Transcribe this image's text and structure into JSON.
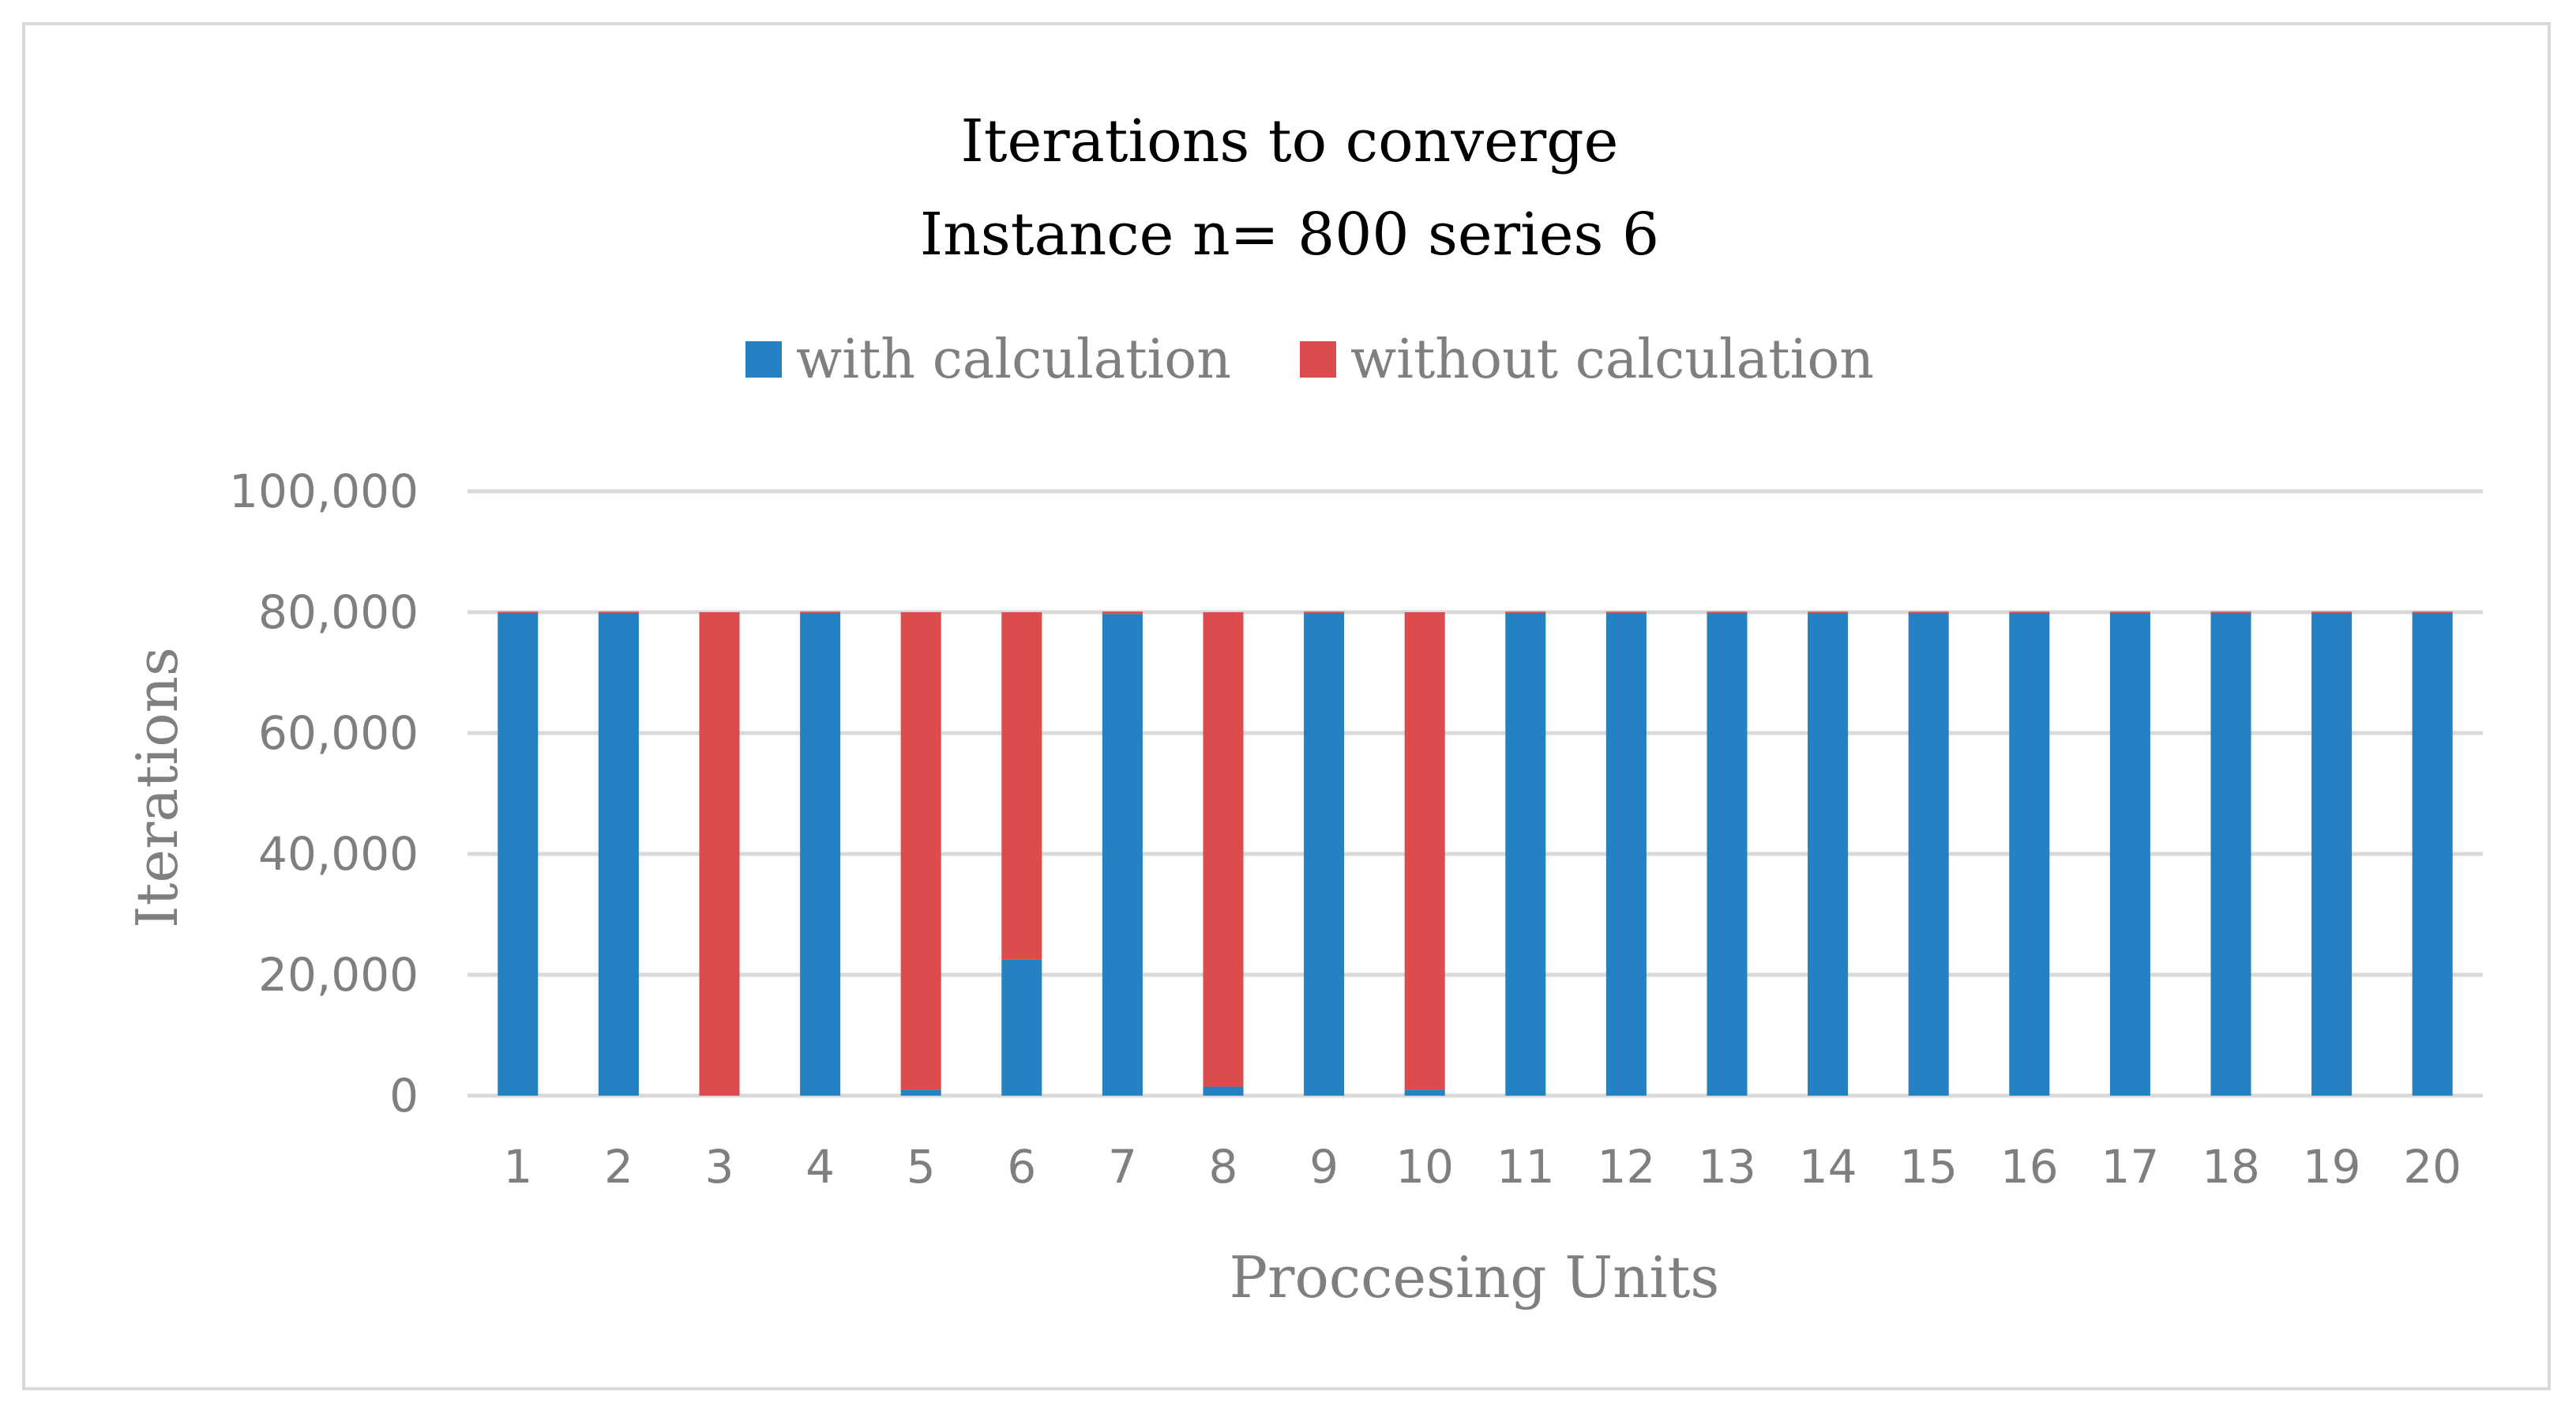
{
  "chart_data": {
    "type": "bar",
    "stacked": true,
    "title": "Iterations to converge",
    "subtitle": "Instance n= 800 series 6",
    "xlabel": "Proccesing Units",
    "ylabel": "Iterations",
    "ylim": [
      0,
      100000
    ],
    "yticks": [
      0,
      20000,
      40000,
      60000,
      80000,
      100000
    ],
    "ytick_labels": [
      "0",
      "20,000",
      "40,000",
      "60,000",
      "80,000",
      "100,000"
    ],
    "grid": true,
    "legend_position": "top-center",
    "categories": [
      "1",
      "2",
      "3",
      "4",
      "5",
      "6",
      "7",
      "8",
      "9",
      "10",
      "11",
      "12",
      "13",
      "14",
      "15",
      "16",
      "17",
      "18",
      "19",
      "20"
    ],
    "series": [
      {
        "name": "with calculation",
        "color": "#2481c2",
        "values": [
          79900,
          79900,
          0,
          79900,
          1000,
          22500,
          79700,
          1500,
          79900,
          1000,
          79900,
          79900,
          79900,
          79900,
          79900,
          79900,
          79900,
          79900,
          79900,
          79900
        ]
      },
      {
        "name": "without calculation",
        "color": "#dc4c4c",
        "values": [
          200,
          200,
          80000,
          200,
          79000,
          57500,
          400,
          78500,
          200,
          79000,
          200,
          200,
          200,
          200,
          200,
          200,
          200,
          200,
          200,
          200
        ]
      }
    ]
  }
}
